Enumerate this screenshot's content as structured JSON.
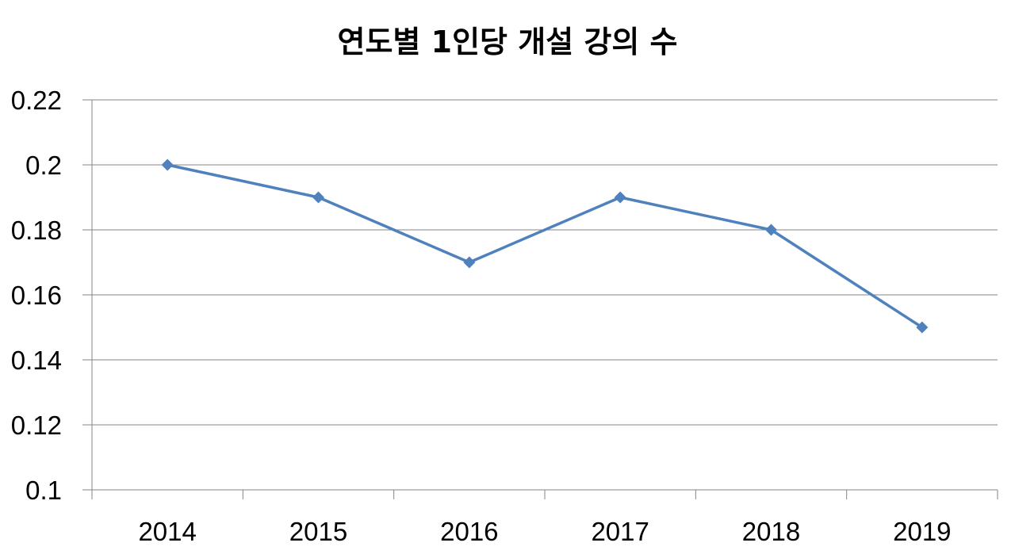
{
  "chart_data": {
    "type": "line",
    "title": "연도별 1인당 개설 강의 수",
    "categories": [
      "2014",
      "2015",
      "2016",
      "2017",
      "2018",
      "2019"
    ],
    "series": [
      {
        "values": [
          0.2,
          0.19,
          0.17,
          0.19,
          0.18,
          0.15
        ]
      }
    ],
    "ylim": [
      0.1,
      0.22
    ],
    "yticks": [
      "0.1",
      "0.12",
      "0.14",
      "0.16",
      "0.18",
      "0.2",
      "0.22"
    ],
    "grid": true,
    "legend": "none",
    "colors": {
      "line": "#4F81BD",
      "grid": "#868686"
    }
  }
}
